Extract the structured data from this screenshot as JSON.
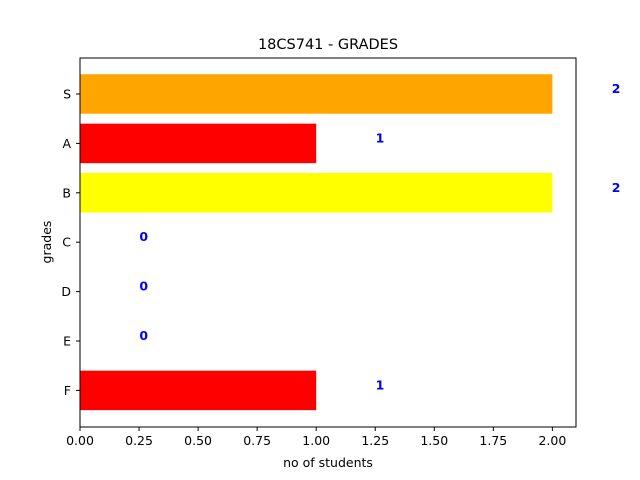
{
  "chart_data": {
    "type": "bar",
    "orientation": "horizontal",
    "title": "18CS741 - GRADES",
    "xlabel": "no of students",
    "ylabel": "grades",
    "categories": [
      "S",
      "A",
      "B",
      "C",
      "D",
      "E",
      "F"
    ],
    "values": [
      2,
      1,
      2,
      0,
      0,
      0,
      1
    ],
    "value_labels": [
      "2",
      "1",
      "2",
      "0",
      "0",
      "0",
      "1"
    ],
    "bar_colors": [
      "#ffa500",
      "#ff0000",
      "#ffff00",
      "#ffffff",
      "#ffffff",
      "#ffffff",
      "#ff0000"
    ],
    "label_color": "#0000ff",
    "xlim": [
      0,
      2.1
    ],
    "xticks": [
      0.0,
      0.25,
      0.5,
      0.75,
      1.0,
      1.25,
      1.5,
      1.75,
      2.0
    ],
    "xtick_labels": [
      "0.00",
      "0.25",
      "0.50",
      "0.75",
      "1.00",
      "1.25",
      "1.50",
      "1.75",
      "2.00"
    ],
    "grid": false,
    "legend": "none"
  }
}
